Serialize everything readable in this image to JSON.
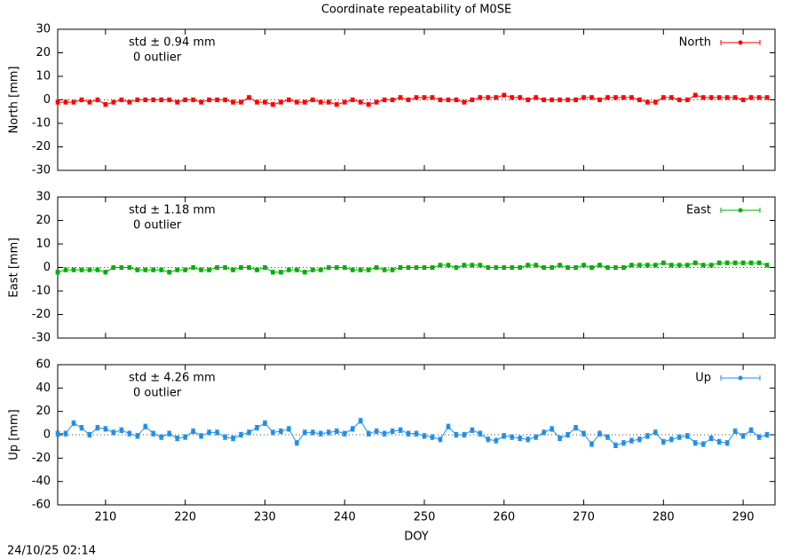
{
  "title": "Coordinate repeatability of M0SE",
  "timestamp": "24/10/25 02:14",
  "chart_data": [
    {
      "type": "errorbar-line",
      "ylabel": "North [mm]",
      "annotations": [
        "std ± 0.94 mm",
        "0 outlier"
      ],
      "xlim": [
        204,
        294
      ],
      "ylim": [
        -30,
        30
      ],
      "yticks": [
        -30,
        -20,
        -10,
        0,
        10,
        20,
        30
      ],
      "x": [
        204,
        205,
        206,
        207,
        208,
        209,
        210,
        211,
        212,
        213,
        214,
        215,
        216,
        217,
        218,
        219,
        220,
        221,
        222,
        223,
        224,
        225,
        226,
        227,
        228,
        229,
        230,
        231,
        232,
        233,
        234,
        235,
        236,
        237,
        238,
        239,
        240,
        241,
        242,
        243,
        244,
        245,
        246,
        247,
        248,
        249,
        250,
        251,
        252,
        253,
        254,
        255,
        256,
        257,
        258,
        259,
        260,
        261,
        262,
        263,
        264,
        265,
        266,
        267,
        268,
        269,
        270,
        271,
        272,
        273,
        274,
        275,
        276,
        277,
        278,
        279,
        280,
        281,
        282,
        283,
        284,
        285,
        286,
        287,
        288,
        289,
        290,
        291,
        292,
        293
      ],
      "series": [
        {
          "name": "North",
          "color": "#ff0000",
          "error": 0.8,
          "values": [
            -1,
            -1,
            -1,
            0,
            -1,
            0,
            -2,
            -1,
            0,
            -1,
            0,
            0,
            0,
            0,
            0,
            -1,
            0,
            0,
            -1,
            0,
            0,
            0,
            -1,
            -1,
            1,
            -1,
            -1,
            -2,
            -1,
            0,
            -1,
            -1,
            0,
            -1,
            -1,
            -2,
            -1,
            0,
            -1,
            -2,
            -1,
            0,
            0,
            1,
            0,
            1,
            1,
            1,
            0,
            0,
            0,
            -1,
            0,
            1,
            1,
            1,
            2,
            1,
            1,
            0,
            1,
            0,
            0,
            0,
            0,
            0,
            1,
            1,
            0,
            1,
            1,
            1,
            1,
            0,
            -1,
            -1,
            1,
            1,
            0,
            0,
            2,
            1,
            1,
            1,
            1,
            1,
            0,
            1,
            1,
            1
          ]
        }
      ]
    },
    {
      "type": "errorbar-line",
      "ylabel": "East [mm]",
      "annotations": [
        "std ± 1.18 mm",
        "0 outlier"
      ],
      "xlim": [
        204,
        294
      ],
      "ylim": [
        -30,
        30
      ],
      "yticks": [
        -30,
        -20,
        -10,
        0,
        10,
        20,
        30
      ],
      "x": [
        204,
        205,
        206,
        207,
        208,
        209,
        210,
        211,
        212,
        213,
        214,
        215,
        216,
        217,
        218,
        219,
        220,
        221,
        222,
        223,
        224,
        225,
        226,
        227,
        228,
        229,
        230,
        231,
        232,
        233,
        234,
        235,
        236,
        237,
        238,
        239,
        240,
        241,
        242,
        243,
        244,
        245,
        246,
        247,
        248,
        249,
        250,
        251,
        252,
        253,
        254,
        255,
        256,
        257,
        258,
        259,
        260,
        261,
        262,
        263,
        264,
        265,
        266,
        267,
        268,
        269,
        270,
        271,
        272,
        273,
        274,
        275,
        276,
        277,
        278,
        279,
        280,
        281,
        282,
        283,
        284,
        285,
        286,
        287,
        288,
        289,
        290,
        291,
        292,
        293
      ],
      "series": [
        {
          "name": "East",
          "color": "#00b000",
          "error": 0.8,
          "values": [
            -2,
            -1,
            -1,
            -1,
            -1,
            -1,
            -2,
            0,
            0,
            0,
            -1,
            -1,
            -1,
            -1,
            -2,
            -1,
            -1,
            0,
            -1,
            -1,
            0,
            0,
            -1,
            0,
            0,
            -1,
            0,
            -2,
            -2,
            -1,
            -1,
            -2,
            -1,
            -1,
            0,
            0,
            0,
            -1,
            -1,
            -1,
            0,
            -1,
            -1,
            0,
            0,
            0,
            0,
            0,
            1,
            1,
            0,
            1,
            1,
            1,
            0,
            0,
            0,
            0,
            0,
            1,
            1,
            0,
            0,
            1,
            0,
            0,
            1,
            0,
            1,
            0,
            0,
            0,
            1,
            1,
            1,
            1,
            2,
            1,
            1,
            1,
            2,
            1,
            1,
            2,
            2,
            2,
            2,
            2,
            2,
            1
          ]
        }
      ]
    },
    {
      "type": "errorbar-line",
      "ylabel": "Up [mm]",
      "xlabel": "DOY",
      "annotations": [
        "std ± 4.26 mm",
        "0 outlier"
      ],
      "xlim": [
        204,
        294
      ],
      "ylim": [
        -60,
        60
      ],
      "yticks": [
        -60,
        -40,
        -20,
        0,
        20,
        40,
        60
      ],
      "xticks": [
        210,
        220,
        230,
        240,
        250,
        260,
        270,
        280,
        290
      ],
      "x": [
        204,
        205,
        206,
        207,
        208,
        209,
        210,
        211,
        212,
        213,
        214,
        215,
        216,
        217,
        218,
        219,
        220,
        221,
        222,
        223,
        224,
        225,
        226,
        227,
        228,
        229,
        230,
        231,
        232,
        233,
        234,
        235,
        236,
        237,
        238,
        239,
        240,
        241,
        242,
        243,
        244,
        245,
        246,
        247,
        248,
        249,
        250,
        251,
        252,
        253,
        254,
        255,
        256,
        257,
        258,
        259,
        260,
        261,
        262,
        263,
        264,
        265,
        266,
        267,
        268,
        269,
        270,
        271,
        272,
        273,
        274,
        275,
        276,
        277,
        278,
        279,
        280,
        281,
        282,
        283,
        284,
        285,
        286,
        287,
        288,
        289,
        290,
        291,
        292,
        293
      ],
      "series": [
        {
          "name": "Up",
          "color": "#1e8ee8",
          "error": 2,
          "values": [
            1,
            1,
            10,
            6,
            0,
            6,
            5,
            2,
            4,
            1,
            -1,
            7,
            1,
            -2,
            1,
            -3,
            -2,
            3,
            -1,
            2,
            2,
            -2,
            -3,
            0,
            2,
            6,
            10,
            2,
            3,
            5,
            -7,
            2,
            2,
            1,
            2,
            3,
            1,
            5,
            12,
            1,
            3,
            1,
            3,
            4,
            1,
            1,
            -1,
            -2,
            -4,
            7,
            0,
            0,
            4,
            1,
            -4,
            -5,
            -1,
            -2,
            -3,
            -4,
            -2,
            2,
            5,
            -3,
            0,
            6,
            1,
            -8,
            1,
            -2,
            -9,
            -7,
            -5,
            -4,
            -1,
            2,
            -6,
            -4,
            -2,
            -1,
            -7,
            -8,
            -3,
            -6,
            -7,
            3,
            -1,
            4,
            -2,
            0
          ]
        }
      ]
    }
  ]
}
